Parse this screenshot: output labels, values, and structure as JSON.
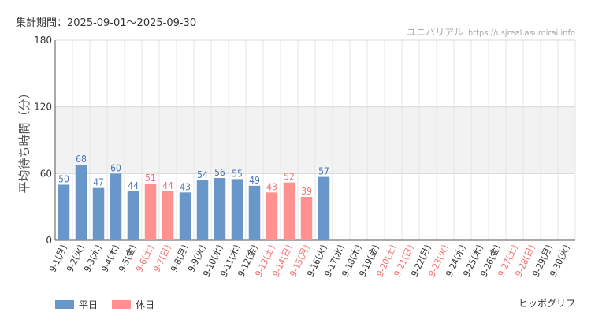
{
  "header": {
    "period": "集計期間：2025-09-01～2025-09-30",
    "site_name": "ユニバリアル",
    "site_url": "https://usjreal.asumirai.info"
  },
  "attraction_name": "ヒッポグリフ",
  "colors": {
    "weekday": "#6a97c9",
    "holiday": "#ff9191",
    "weekday_label": "#4a78b5",
    "holiday_label": "#f07070",
    "band": "#f2f2f2",
    "grid": "#e6e6e6",
    "axis": "#555555"
  },
  "legend": {
    "weekday_label": "平日",
    "holiday_label": "休日"
  },
  "chart_data": {
    "type": "bar",
    "ylabel": "平均待ち時間（分）",
    "ylim": [
      0,
      180
    ],
    "yticks": [
      0,
      60,
      120,
      180
    ],
    "highlight_band": [
      60,
      120
    ],
    "grid": true,
    "legend_position": "bottom-left",
    "categories": [
      "9-1(月)",
      "9-2(火)",
      "9-3(水)",
      "9-4(木)",
      "9-5(金)",
      "9-6(土)",
      "9-7(日)",
      "9-8(月)",
      "9-9(火)",
      "9-10(水)",
      "9-11(木)",
      "9-12(金)",
      "9-13(土)",
      "9-14(日)",
      "9-15(月)",
      "9-16(火)",
      "9-17(水)",
      "9-18(木)",
      "9-19(金)",
      "9-20(土)",
      "9-21(日)",
      "9-22(月)",
      "9-23(火)",
      "9-24(水)",
      "9-25(木)",
      "9-26(金)",
      "9-27(土)",
      "9-28(日)",
      "9-29(月)",
      "9-30(火)"
    ],
    "values": [
      50,
      68,
      47,
      60,
      44,
      51,
      44,
      43,
      54,
      56,
      55,
      49,
      43,
      52,
      39,
      57,
      null,
      null,
      null,
      null,
      null,
      null,
      null,
      null,
      null,
      null,
      null,
      null,
      null,
      null
    ],
    "day_type": [
      "平日",
      "平日",
      "平日",
      "平日",
      "平日",
      "休日",
      "休日",
      "平日",
      "平日",
      "平日",
      "平日",
      "平日",
      "休日",
      "休日",
      "休日",
      "平日",
      "平日",
      "平日",
      "平日",
      "休日",
      "休日",
      "平日",
      "休日",
      "平日",
      "平日",
      "平日",
      "休日",
      "休日",
      "平日",
      "平日"
    ]
  }
}
